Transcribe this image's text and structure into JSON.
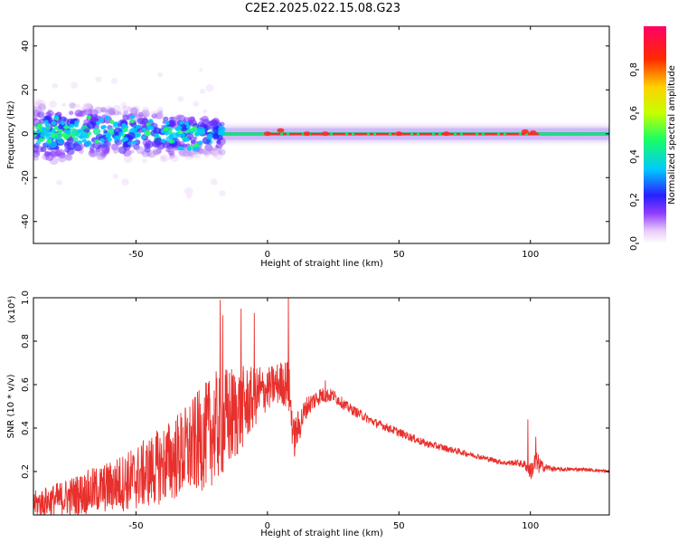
{
  "title": "C2E2.2025.022.15.08.G23",
  "chart_data": [
    {
      "type": "heatmap",
      "xlabel": "Height of straight line (km)",
      "ylabel": "Frequency (Hz)",
      "xlim": [
        -89,
        130
      ],
      "ylim": [
        -50,
        49
      ],
      "x_ticks": [
        "-50",
        "0",
        "50",
        "100"
      ],
      "y_ticks": [
        "-40",
        "-20",
        "0",
        "20",
        "40"
      ],
      "colorbar": {
        "label": "Normalized spectral amplitude",
        "range": [
          0.0,
          1.0
        ],
        "ticks": [
          "0.0",
          "0.2",
          "0.4",
          "0.6",
          "0.8"
        ],
        "colors": [
          "#ffffff",
          "#e7c9f7",
          "#8d3cff",
          "#2a1fff",
          "#00c8ff",
          "#19ff62",
          "#c6ff00",
          "#ffd200",
          "#ff2a00",
          "#ff0066"
        ]
      },
      "grid": false,
      "colors": {
        "background": "#ffffff",
        "line": "#000000"
      }
    },
    {
      "type": "line",
      "xlabel": "Height of straight line (km)",
      "ylabel": "SNR (10 * v/v)",
      "y_multiplier": "(x10⁴)",
      "xlim": [
        -89,
        130
      ],
      "ylim": [
        0,
        1.0
      ],
      "x_ticks": [
        "-50",
        "0",
        "50",
        "100"
      ],
      "y_ticks": [
        "0.2",
        "0.4",
        "0.6",
        "0.8",
        "1.0"
      ],
      "series": [
        {
          "color": "#e8302c",
          "x": [
            -89,
            -80,
            -70,
            -60,
            -50,
            -40,
            -30,
            -25,
            -20,
            -15,
            -10,
            -5,
            0,
            5,
            8,
            10,
            15,
            20,
            25,
            30,
            40,
            50,
            60,
            70,
            80,
            90,
            95,
            98,
            100,
            102,
            105,
            110,
            120,
            130
          ],
          "base": [
            0.05,
            0.07,
            0.1,
            0.13,
            0.17,
            0.23,
            0.3,
            0.35,
            0.4,
            0.44,
            0.49,
            0.54,
            0.58,
            0.61,
            0.6,
            0.35,
            0.5,
            0.55,
            0.55,
            0.5,
            0.43,
            0.38,
            0.33,
            0.3,
            0.27,
            0.24,
            0.24,
            0.23,
            0.2,
            0.24,
            0.22,
            0.21,
            0.21,
            0.2
          ],
          "noise": [
            0.06,
            0.08,
            0.1,
            0.12,
            0.15,
            0.18,
            0.22,
            0.24,
            0.26,
            0.25,
            0.2,
            0.14,
            0.1,
            0.1,
            0.12,
            0.1,
            0.05,
            0.04,
            0.03,
            0.025,
            0.02,
            0.02,
            0.018,
            0.015,
            0.012,
            0.012,
            0.015,
            0.02,
            0.04,
            0.06,
            0.02,
            0.01,
            0.008,
            0.008
          ],
          "peaks": [
            [
              -18,
              0.99
            ],
            [
              -17,
              0.92
            ],
            [
              -10,
              0.95
            ],
            [
              -5,
              0.93
            ],
            [
              8,
              1.0
            ],
            [
              -3,
              0.68
            ],
            [
              1,
              0.66
            ],
            [
              22,
              0.62
            ],
            [
              99,
              0.44
            ],
            [
              102,
              0.36
            ]
          ]
        }
      ],
      "grid": false
    }
  ]
}
